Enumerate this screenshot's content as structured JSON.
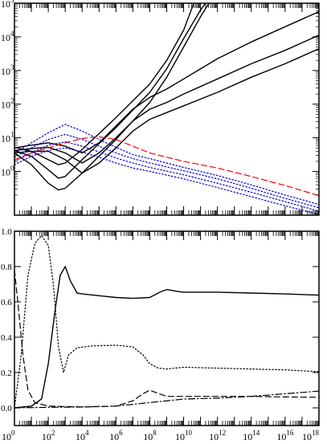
{
  "chart_data": [
    {
      "type": "line",
      "title": "",
      "xlabel": "",
      "ylabel": "",
      "xscale": "log",
      "yscale": "log",
      "xlim_exp": [
        0,
        18
      ],
      "ylim_exp": [
        -1.3,
        5
      ],
      "x_ticks": [
        {
          "base": "10",
          "exp": "0"
        },
        {
          "base": "10",
          "exp": "2"
        },
        {
          "base": "10",
          "exp": "4"
        },
        {
          "base": "10",
          "exp": "6"
        },
        {
          "base": "10",
          "exp": "8"
        },
        {
          "base": "10",
          "exp": "10"
        },
        {
          "base": "10",
          "exp": "12"
        },
        {
          "base": "10",
          "exp": "14"
        },
        {
          "base": "10",
          "exp": "16"
        },
        {
          "base": "10",
          "exp": "18"
        }
      ],
      "y_ticks": [
        {
          "base": "10",
          "exp": "0",
          "value_exp": 0
        },
        {
          "base": "10",
          "exp": "1",
          "value_exp": 1
        },
        {
          "base": "10",
          "exp": "2",
          "value_exp": 2
        },
        {
          "base": "10",
          "exp": "3",
          "value_exp": 3
        },
        {
          "base": "10",
          "exp": "4",
          "value_exp": 4
        },
        {
          "base": "10",
          "exp": "5",
          "value_exp": 5
        }
      ],
      "series": [
        {
          "style": "solid",
          "color": "#000000",
          "points": [
            [
              0,
              0.72
            ],
            [
              1,
              0.6
            ],
            [
              2,
              0.35
            ],
            [
              2.6,
              0.2
            ],
            [
              3,
              0.25
            ],
            [
              4,
              0.65
            ],
            [
              6,
              1.6
            ],
            [
              8,
              2.6
            ],
            [
              9,
              3.3
            ],
            [
              10,
              4.2
            ],
            [
              10.6,
              5
            ]
          ]
        },
        {
          "style": "solid",
          "color": "#000000",
          "points": [
            [
              0,
              0.62
            ],
            [
              1,
              0.45
            ],
            [
              2,
              0.05
            ],
            [
              2.6,
              -0.2
            ],
            [
              3,
              -0.15
            ],
            [
              4,
              0.35
            ],
            [
              6,
              1.3
            ],
            [
              8,
              2.35
            ],
            [
              9,
              3.05
            ],
            [
              10,
              3.95
            ],
            [
              11,
              4.8
            ],
            [
              11.3,
              5
            ]
          ]
        },
        {
          "style": "solid",
          "color": "#000000",
          "points": [
            [
              0,
              0.55
            ],
            [
              1,
              0.2
            ],
            [
              2,
              -0.35
            ],
            [
              2.6,
              -0.55
            ],
            [
              3,
              -0.5
            ],
            [
              4,
              -0.05
            ],
            [
              6,
              0.95
            ],
            [
              8,
              2.05
            ],
            [
              9,
              2.8
            ],
            [
              10,
              3.7
            ],
            [
              11,
              4.6
            ],
            [
              11.5,
              5
            ]
          ]
        },
        {
          "style": "solid",
          "color": "#000000",
          "points": [
            [
              0,
              0.7
            ],
            [
              1,
              0.78
            ],
            [
              2,
              0.85
            ],
            [
              3,
              0.75
            ],
            [
              4,
              0.55
            ],
            [
              5,
              0.85
            ],
            [
              6,
              1.35
            ],
            [
              7,
              1.85
            ],
            [
              8,
              2.2
            ],
            [
              9,
              2.45
            ],
            [
              10,
              2.75
            ],
            [
              12,
              3.35
            ],
            [
              14,
              3.85
            ],
            [
              16,
              4.3
            ],
            [
              18,
              4.75
            ]
          ]
        },
        {
          "style": "solid",
          "color": "#000000",
          "points": [
            [
              0,
              0.62
            ],
            [
              1,
              0.68
            ],
            [
              2,
              0.72
            ],
            [
              3,
              0.55
            ],
            [
              4,
              0.25
            ],
            [
              5,
              0.55
            ],
            [
              6,
              1.0
            ],
            [
              7,
              1.5
            ],
            [
              8,
              1.85
            ],
            [
              9,
              2.05
            ],
            [
              10,
              2.3
            ],
            [
              12,
              2.75
            ],
            [
              14,
              3.2
            ],
            [
              16,
              3.6
            ],
            [
              18,
              4.05
            ]
          ]
        },
        {
          "style": "solid",
          "color": "#000000",
          "points": [
            [
              0,
              0.55
            ],
            [
              1,
              0.6
            ],
            [
              2,
              0.6
            ],
            [
              3,
              0.35
            ],
            [
              4,
              -0.05
            ],
            [
              5,
              0.25
            ],
            [
              6,
              0.7
            ],
            [
              7,
              1.2
            ],
            [
              8,
              1.55
            ],
            [
              9,
              1.75
            ],
            [
              10,
              1.95
            ],
            [
              12,
              2.35
            ],
            [
              14,
              2.8
            ],
            [
              16,
              3.2
            ],
            [
              18,
              3.65
            ]
          ]
        },
        {
          "style": "dashed",
          "color": "#ff0000",
          "points": [
            [
              0,
              0.35
            ],
            [
              1,
              0.55
            ],
            [
              2,
              0.7
            ],
            [
              3,
              0.85
            ],
            [
              4,
              0.98
            ],
            [
              5,
              1.03
            ],
            [
              6,
              0.95
            ],
            [
              7,
              0.75
            ],
            [
              8,
              0.55
            ],
            [
              10,
              0.3
            ],
            [
              12,
              0.1
            ],
            [
              14,
              -0.15
            ],
            [
              16,
              -0.42
            ],
            [
              18,
              -0.72
            ]
          ]
        },
        {
          "style": "dotted",
          "color": "#0000cc",
          "points": [
            [
              0,
              0.55
            ],
            [
              1,
              0.85
            ],
            [
              2,
              1.15
            ],
            [
              3,
              1.4
            ],
            [
              4,
              1.2
            ],
            [
              5,
              0.95
            ],
            [
              6,
              0.72
            ],
            [
              7,
              0.5
            ],
            [
              8,
              0.38
            ],
            [
              10,
              0.12
            ],
            [
              12,
              -0.12
            ],
            [
              14,
              -0.4
            ],
            [
              16,
              -0.7
            ],
            [
              18,
              -0.98
            ]
          ]
        },
        {
          "style": "dotted",
          "color": "#0000cc",
          "points": [
            [
              0,
              0.42
            ],
            [
              1,
              0.7
            ],
            [
              2,
              0.95
            ],
            [
              3,
              1.1
            ],
            [
              4,
              0.95
            ],
            [
              5,
              0.75
            ],
            [
              6,
              0.55
            ],
            [
              7,
              0.38
            ],
            [
              8,
              0.25
            ],
            [
              10,
              0.02
            ],
            [
              12,
              -0.22
            ],
            [
              14,
              -0.5
            ],
            [
              16,
              -0.8
            ],
            [
              18,
              -1.08
            ]
          ]
        },
        {
          "style": "dotted",
          "color": "#0000cc",
          "points": [
            [
              0,
              0.3
            ],
            [
              1,
              0.55
            ],
            [
              2,
              0.78
            ],
            [
              3,
              0.88
            ],
            [
              4,
              0.75
            ],
            [
              5,
              0.58
            ],
            [
              6,
              0.4
            ],
            [
              7,
              0.25
            ],
            [
              8,
              0.12
            ],
            [
              10,
              -0.1
            ],
            [
              12,
              -0.35
            ],
            [
              14,
              -0.62
            ],
            [
              16,
              -0.9
            ],
            [
              18,
              -1.18
            ]
          ]
        },
        {
          "style": "dotted",
          "color": "#0000cc",
          "points": [
            [
              0,
              0.2
            ],
            [
              1,
              0.45
            ],
            [
              2,
              0.62
            ],
            [
              3,
              0.7
            ],
            [
              4,
              0.58
            ],
            [
              5,
              0.42
            ],
            [
              6,
              0.25
            ],
            [
              7,
              0.1
            ],
            [
              8,
              0.0
            ],
            [
              10,
              -0.22
            ],
            [
              12,
              -0.48
            ],
            [
              14,
              -0.75
            ],
            [
              16,
              -1.02
            ],
            [
              18,
              -1.28
            ]
          ]
        }
      ]
    },
    {
      "type": "line",
      "title": "",
      "xlabel": "",
      "ylabel": "",
      "xscale": "log",
      "xlim_exp": [
        0,
        18
      ],
      "ylim": [
        -0.1,
        1.0
      ],
      "x_ticks": [
        {
          "base": "10",
          "exp": "0"
        },
        {
          "base": "10",
          "exp": "2"
        },
        {
          "base": "10",
          "exp": "4"
        },
        {
          "base": "10",
          "exp": "6"
        },
        {
          "base": "10",
          "exp": "8"
        },
        {
          "base": "10",
          "exp": "10"
        },
        {
          "base": "10",
          "exp": "12"
        },
        {
          "base": "10",
          "exp": "14"
        },
        {
          "base": "10",
          "exp": "16"
        },
        {
          "base": "10",
          "exp": "18"
        }
      ],
      "y_ticks": [
        {
          "label": "0.0",
          "value": 0.0
        },
        {
          "label": "0.2",
          "value": 0.2
        },
        {
          "label": "0.4",
          "value": 0.4
        },
        {
          "label": "0.6",
          "value": 0.6
        },
        {
          "label": "0.8",
          "value": 0.8
        },
        {
          "label": "1.0",
          "value": 1.0
        }
      ],
      "series": [
        {
          "style": "solid",
          "color": "#000000",
          "points": [
            [
              0,
              0.0
            ],
            [
              1,
              0.01
            ],
            [
              1.6,
              0.05
            ],
            [
              2,
              0.25
            ],
            [
              2.4,
              0.55
            ],
            [
              2.7,
              0.75
            ],
            [
              3,
              0.8
            ],
            [
              3.3,
              0.72
            ],
            [
              3.7,
              0.65
            ],
            [
              4,
              0.645
            ],
            [
              5,
              0.635
            ],
            [
              6,
              0.625
            ],
            [
              7,
              0.62
            ],
            [
              8,
              0.625
            ],
            [
              8.6,
              0.655
            ],
            [
              9,
              0.67
            ],
            [
              9.6,
              0.66
            ],
            [
              10,
              0.655
            ],
            [
              12,
              0.655
            ],
            [
              14,
              0.65
            ],
            [
              16,
              0.645
            ],
            [
              18,
              0.638
            ]
          ]
        },
        {
          "style": "dotted",
          "color": "#000000",
          "points": [
            [
              0,
              0.0
            ],
            [
              0.4,
              0.3
            ],
            [
              0.8,
              0.75
            ],
            [
              1.2,
              0.93
            ],
            [
              1.6,
              0.975
            ],
            [
              2,
              0.92
            ],
            [
              2.3,
              0.7
            ],
            [
              2.6,
              0.35
            ],
            [
              2.9,
              0.2
            ],
            [
              3.2,
              0.3
            ],
            [
              3.7,
              0.34
            ],
            [
              4.5,
              0.35
            ],
            [
              6,
              0.355
            ],
            [
              7,
              0.345
            ],
            [
              7.6,
              0.3
            ],
            [
              8,
              0.25
            ],
            [
              8.5,
              0.225
            ],
            [
              9,
              0.22
            ],
            [
              10,
              0.23
            ],
            [
              12,
              0.225
            ],
            [
              14,
              0.22
            ],
            [
              16,
              0.215
            ],
            [
              18,
              0.205
            ]
          ]
        },
        {
          "style": "dashed",
          "color": "#000000",
          "points": [
            [
              0,
              0.78
            ],
            [
              0.2,
              0.6
            ],
            [
              0.5,
              0.3
            ],
            [
              0.8,
              0.1
            ],
            [
              1.2,
              0.03
            ],
            [
              2,
              0.01
            ],
            [
              4,
              0.005
            ],
            [
              6,
              0.01
            ],
            [
              7,
              0.04
            ],
            [
              7.6,
              0.08
            ],
            [
              8,
              0.1
            ],
            [
              8.4,
              0.085
            ],
            [
              9,
              0.065
            ],
            [
              10,
              0.065
            ],
            [
              12,
              0.065
            ],
            [
              14,
              0.065
            ],
            [
              16,
              0.062
            ],
            [
              18,
              0.06
            ]
          ]
        },
        {
          "style": "dashdot",
          "color": "#000000",
          "points": [
            [
              0,
              0.0
            ],
            [
              2,
              0.003
            ],
            [
              4,
              0.005
            ],
            [
              6,
              0.01
            ],
            [
              8,
              0.03
            ],
            [
              10,
              0.05
            ],
            [
              12,
              0.055
            ],
            [
              14,
              0.065
            ],
            [
              16,
              0.08
            ],
            [
              18,
              0.095
            ]
          ]
        }
      ]
    }
  ]
}
